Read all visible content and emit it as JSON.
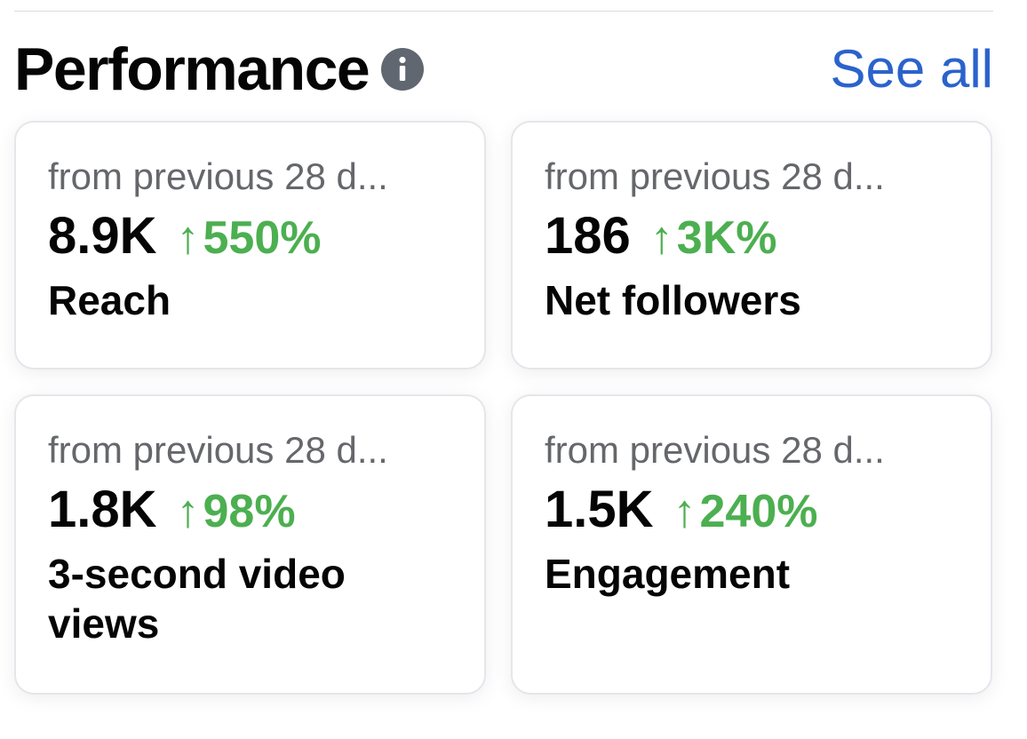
{
  "header": {
    "title": "Performance",
    "info_icon": "info-icon",
    "see_all_label": "See all"
  },
  "colors": {
    "title": "#050505",
    "link": "#2b63cc",
    "subtext": "#65676b",
    "positive": "#4caf50",
    "card_border": "#e4e6eb"
  },
  "cards": [
    {
      "subtitle": "from previous 28 d...",
      "value": "8.9K",
      "arrow": "↑",
      "delta": "550%",
      "label": "Reach"
    },
    {
      "subtitle": "from previous 28 d...",
      "value": "186",
      "arrow": "↑",
      "delta": "3K%",
      "label": "Net followers"
    },
    {
      "subtitle": "from previous 28 d...",
      "value": "1.8K",
      "arrow": "↑",
      "delta": "98%",
      "label": "3-second video views"
    },
    {
      "subtitle": "from previous 28 d...",
      "value": "1.5K",
      "arrow": "↑",
      "delta": "240%",
      "label": "Engagement"
    }
  ]
}
